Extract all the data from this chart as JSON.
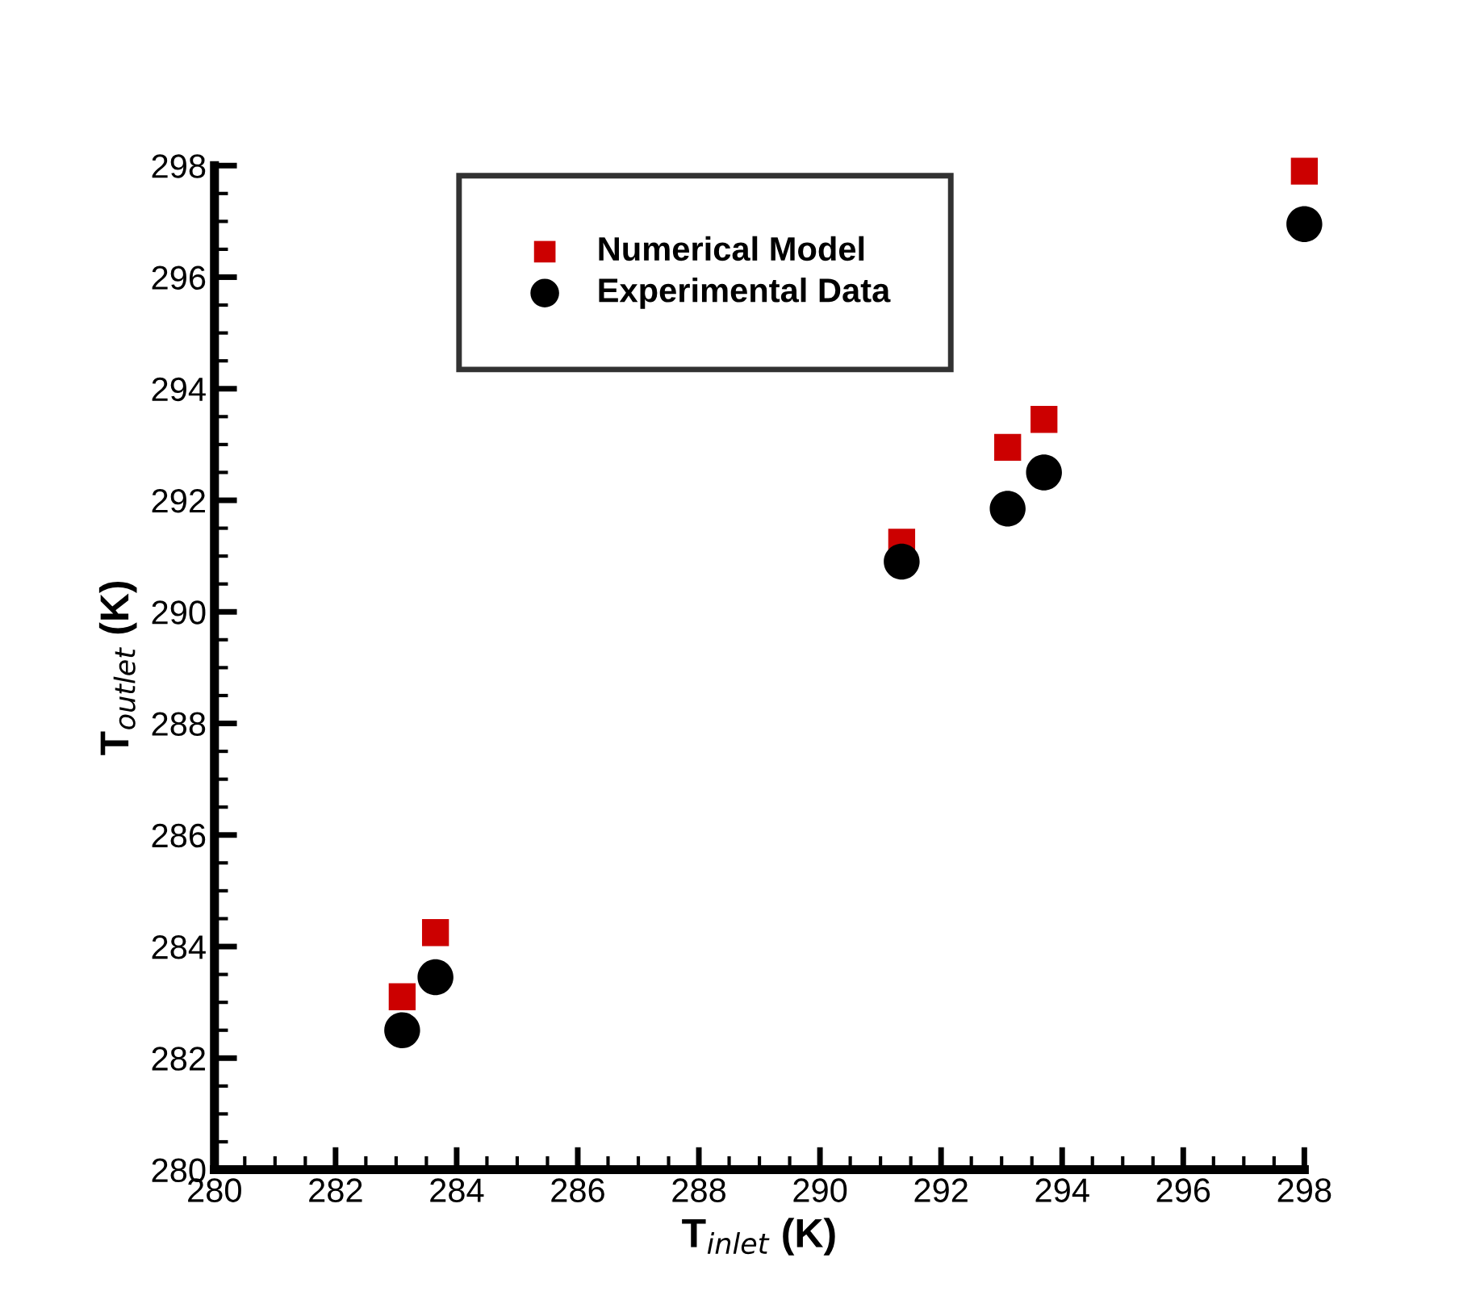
{
  "chart_data": {
    "type": "scatter",
    "xlabel": "T$_{inlet}$ (K)",
    "ylabel": "T$_{outlet}$ (K)",
    "series": [
      {
        "name": "Numerical Model",
        "color": "#cc0000",
        "marker": "square",
        "x": [
          283.1,
          283.65,
          291.35,
          293.1,
          293.7,
          298.0
        ],
        "values": [
          283.1,
          284.25,
          291.25,
          292.95,
          293.45,
          297.9
        ]
      },
      {
        "name": "Experimental Data",
        "color": "#000000",
        "marker": "circle",
        "x": [
          283.1,
          283.65,
          291.35,
          293.1,
          293.7,
          298.0
        ],
        "values": [
          282.5,
          283.45,
          290.9,
          291.85,
          292.5,
          296.95
        ]
      }
    ],
    "xlim": [
      280,
      298
    ],
    "ylim": [
      280,
      298
    ],
    "xticks": [
      280,
      282,
      284,
      286,
      288,
      290,
      292,
      294,
      296,
      298
    ],
    "yticks": [
      280,
      282,
      284,
      286,
      288,
      290,
      292,
      294,
      296,
      298
    ],
    "grid": false,
    "legend": "top"
  }
}
